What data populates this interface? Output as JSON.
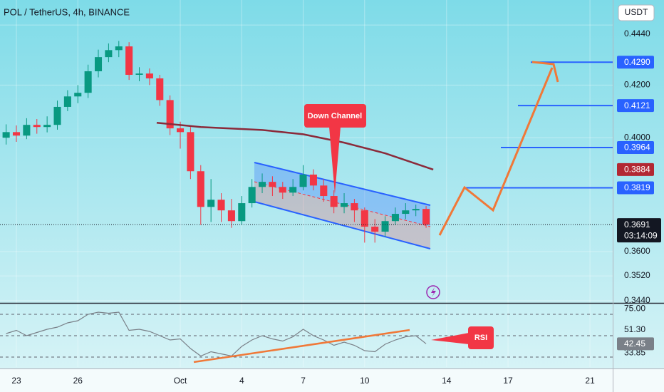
{
  "chart_data": {
    "type": "candlestick",
    "title": "POL / TetherUS, 4h, BINANCE",
    "currency": "USDT",
    "log_scale": true,
    "grid": true,
    "up_color": "#089981",
    "down_color": "#f23645",
    "x": [
      -0.5,
      0,
      0.5,
      1,
      1.5,
      2,
      2.5,
      3,
      3.5,
      4,
      4.5,
      5,
      5.5,
      6,
      6.5,
      7,
      7.5,
      8,
      8.5,
      9,
      9.5,
      10,
      10.5,
      11,
      11.5,
      12,
      12.5,
      13,
      13.5,
      14,
      14.5,
      15,
      15.5,
      16,
      16.5,
      17,
      17.5,
      18,
      18.5,
      19,
      19.5,
      20
    ],
    "open": [
      0.4,
      0.4021,
      0.4008,
      0.4048,
      0.404,
      0.4048,
      0.4116,
      0.4156,
      0.417,
      0.4254,
      0.431,
      0.4338,
      0.4353,
      0.424,
      0.4245,
      0.4226,
      0.4142,
      0.4035,
      0.4021,
      0.3878,
      0.3752,
      0.3777,
      0.374,
      0.3703,
      0.3765,
      0.3822,
      0.384,
      0.3822,
      0.3802,
      0.3822,
      0.3866,
      0.3827,
      0.379,
      0.3752,
      0.3765,
      0.374,
      0.3684,
      0.3667,
      0.3703,
      0.3728,
      0.374,
      0.3745
    ],
    "high": [
      0.405,
      0.4046,
      0.4073,
      0.407,
      0.408,
      0.414,
      0.418,
      0.42,
      0.428,
      0.434,
      0.4365,
      0.4375,
      0.437,
      0.427,
      0.4265,
      0.424,
      0.416,
      0.406,
      0.404,
      0.39,
      0.385,
      0.38,
      0.378,
      0.379,
      0.385,
      0.387,
      0.386,
      0.384,
      0.385,
      0.39,
      0.3885,
      0.385,
      0.381,
      0.38,
      0.378,
      0.375,
      0.371,
      0.372,
      0.375,
      0.3765,
      0.376,
      0.3755
    ],
    "low": [
      0.3975,
      0.3985,
      0.3995,
      0.4015,
      0.402,
      0.403,
      0.41,
      0.413,
      0.415,
      0.423,
      0.429,
      0.431,
      0.422,
      0.4215,
      0.42,
      0.412,
      0.401,
      0.396,
      0.385,
      0.369,
      0.37,
      0.37,
      0.368,
      0.369,
      0.375,
      0.38,
      0.379,
      0.378,
      0.379,
      0.381,
      0.381,
      0.377,
      0.373,
      0.373,
      0.37,
      0.363,
      0.363,
      0.365,
      0.369,
      0.371,
      0.372,
      0.368
    ],
    "close": [
      0.4021,
      0.4008,
      0.4048,
      0.404,
      0.4048,
      0.4116,
      0.4156,
      0.417,
      0.4254,
      0.431,
      0.4338,
      0.4353,
      0.424,
      0.4245,
      0.4226,
      0.4142,
      0.4035,
      0.4021,
      0.3878,
      0.3752,
      0.3777,
      0.374,
      0.3703,
      0.3765,
      0.3822,
      0.384,
      0.3822,
      0.3802,
      0.3822,
      0.3866,
      0.3827,
      0.379,
      0.3752,
      0.3765,
      0.374,
      0.3684,
      0.3667,
      0.3703,
      0.3728,
      0.374,
      0.3745,
      0.3691
    ],
    "xlim": [
      -0.8,
      29.11
    ],
    "xticks": [
      {
        "value": 0,
        "label": "23"
      },
      {
        "value": 3,
        "label": "26"
      },
      {
        "value": 8,
        "label": "Oct"
      },
      {
        "value": 11,
        "label": "4"
      },
      {
        "value": 14,
        "label": "7"
      },
      {
        "value": 17,
        "label": "10"
      },
      {
        "value": 21,
        "label": "14"
      },
      {
        "value": 24,
        "label": "17"
      },
      {
        "value": 28,
        "label": "21"
      }
    ],
    "ylim": [
      0.3433,
      0.4544
    ],
    "yticks": [
      {
        "value": 0.444,
        "label": "0.4440"
      },
      {
        "value": 0.42,
        "label": "0.4200"
      },
      {
        "value": 0.4,
        "label": "0.4000"
      },
      {
        "value": 0.36,
        "label": "0.3600"
      },
      {
        "value": 0.352,
        "label": "0.3520"
      },
      {
        "value": 0.344,
        "label": "0.3440"
      }
    ],
    "ma": {
      "color": "#8b2a3a",
      "x": [
        6.85,
        9,
        12,
        14,
        16,
        18,
        20.35
      ],
      "values": [
        0.4056,
        0.404,
        0.4029,
        0.4013,
        0.3982,
        0.3943,
        0.3884
      ],
      "last": {
        "value": 0.3884,
        "label": "0.3884"
      }
    },
    "levels": [
      {
        "value": 0.429,
        "label": "0.4290"
      },
      {
        "value": 0.4121,
        "label": "0.4121"
      },
      {
        "value": 0.3964,
        "label": "0.3964"
      },
      {
        "value": 0.3819,
        "label": "0.3819"
      }
    ],
    "last_price": {
      "value": 0.3691,
      "label": "0.3691"
    },
    "countdown": "03:14:09",
    "annotations": [
      "Down Channel",
      "RSI"
    ],
    "rsi": {
      "color": "#7a8088",
      "values": [
        52,
        55,
        50,
        53,
        56,
        58,
        62,
        64,
        70,
        72,
        71,
        72,
        55,
        56,
        54,
        50,
        46,
        47,
        38,
        31,
        35,
        33,
        31,
        40,
        46,
        50,
        47,
        45,
        49,
        56,
        50,
        46,
        41,
        44,
        41,
        36,
        35,
        42,
        46,
        49,
        50,
        42.45
      ],
      "ylim": [
        20.67,
        78.67
      ],
      "bands": [
        70,
        50,
        30
      ],
      "yticks": [
        {
          "value": 75,
          "label": "75.00"
        },
        {
          "value": 33.85,
          "label": "33.85"
        }
      ],
      "ma_value": {
        "value": 51.3,
        "label": "51.30"
      },
      "current": {
        "value": 42.45,
        "label": "42.45"
      }
    }
  }
}
